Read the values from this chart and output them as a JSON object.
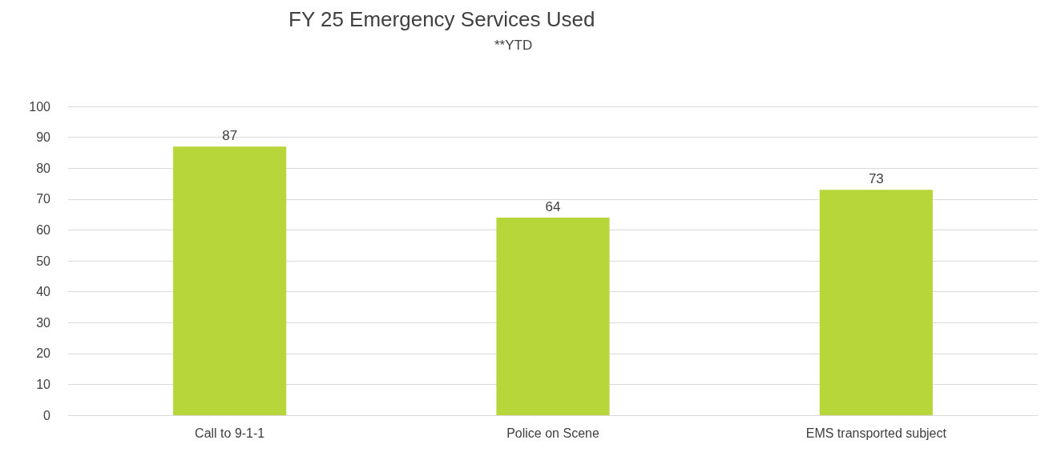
{
  "chart_data": {
    "type": "bar",
    "title": "FY 25 Emergency Services Used",
    "subtitle": "**YTD",
    "categories": [
      "Call to 9-1-1",
      "Police on Scene",
      "EMS transported subject"
    ],
    "values": [
      87,
      64,
      73
    ],
    "color": "#b7d639",
    "ylim": [
      0,
      100
    ],
    "yticks": [
      0,
      10,
      20,
      30,
      40,
      50,
      60,
      70,
      80,
      90,
      100
    ],
    "grid": "y",
    "data_labels": true
  }
}
